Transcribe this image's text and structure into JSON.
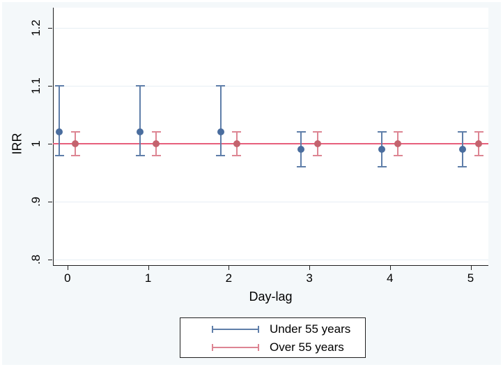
{
  "figure": {
    "background": "#f4f8fa",
    "plot_background": "#ffffff",
    "axis_color": "#1f1f1f",
    "grid_color": "#e7eef4",
    "text_color": "#000000"
  },
  "chart_data": {
    "type": "scatter",
    "title": "",
    "xlabel": "Day-lag",
    "ylabel": "IRR",
    "xlim": [
      -0.18,
      5.22
    ],
    "ylim": [
      0.789,
      1.235
    ],
    "grid": "horizontal-only",
    "x_ticks": [
      {
        "value": 0,
        "label": "0"
      },
      {
        "value": 1,
        "label": "1"
      },
      {
        "value": 2,
        "label": "2"
      },
      {
        "value": 3,
        "label": "3"
      },
      {
        "value": 4,
        "label": "4"
      },
      {
        "value": 5,
        "label": "5"
      }
    ],
    "y_ticks": [
      {
        "value": 0.8,
        "label": ".8"
      },
      {
        "value": 0.9,
        "label": ".9"
      },
      {
        "value": 1.0,
        "label": "1"
      },
      {
        "value": 1.1,
        "label": "1.1"
      },
      {
        "value": 1.2,
        "label": "1.2"
      }
    ],
    "reference_line": {
      "y": 1.0,
      "color": "#e75f7c"
    },
    "series": [
      {
        "name": "Under 55 years",
        "marker_color": "#4a6d9e",
        "line_color": "#5f7ea9",
        "x_offset": -0.1,
        "points": [
          {
            "x": 0,
            "y": 1.02,
            "ci_low": 0.98,
            "ci_high": 1.1
          },
          {
            "x": 1,
            "y": 1.02,
            "ci_low": 0.98,
            "ci_high": 1.1
          },
          {
            "x": 2,
            "y": 1.02,
            "ci_low": 0.98,
            "ci_high": 1.1
          },
          {
            "x": 3,
            "y": 0.99,
            "ci_low": 0.96,
            "ci_high": 1.02
          },
          {
            "x": 4,
            "y": 0.99,
            "ci_low": 0.96,
            "ci_high": 1.02
          },
          {
            "x": 5,
            "y": 0.99,
            "ci_low": 0.96,
            "ci_high": 1.02
          }
        ]
      },
      {
        "name": "Over 55 years",
        "marker_color": "#c4636e",
        "line_color": "#dd8593",
        "x_offset": 0.1,
        "points": [
          {
            "x": 0,
            "y": 1.0,
            "ci_low": 0.98,
            "ci_high": 1.02
          },
          {
            "x": 1,
            "y": 1.0,
            "ci_low": 0.98,
            "ci_high": 1.02
          },
          {
            "x": 2,
            "y": 1.0,
            "ci_low": 0.98,
            "ci_high": 1.02
          },
          {
            "x": 3,
            "y": 1.0,
            "ci_low": 0.98,
            "ci_high": 1.02
          },
          {
            "x": 4,
            "y": 1.0,
            "ci_low": 0.98,
            "ci_high": 1.02
          },
          {
            "x": 5,
            "y": 1.0,
            "ci_low": 0.98,
            "ci_high": 1.02
          }
        ]
      }
    ],
    "legend": {
      "position": "bottom-center",
      "entries": [
        {
          "label": "Under 55 years",
          "color": "#5f7ea9"
        },
        {
          "label": "Over 55 years",
          "color": "#dd8593"
        }
      ]
    }
  }
}
